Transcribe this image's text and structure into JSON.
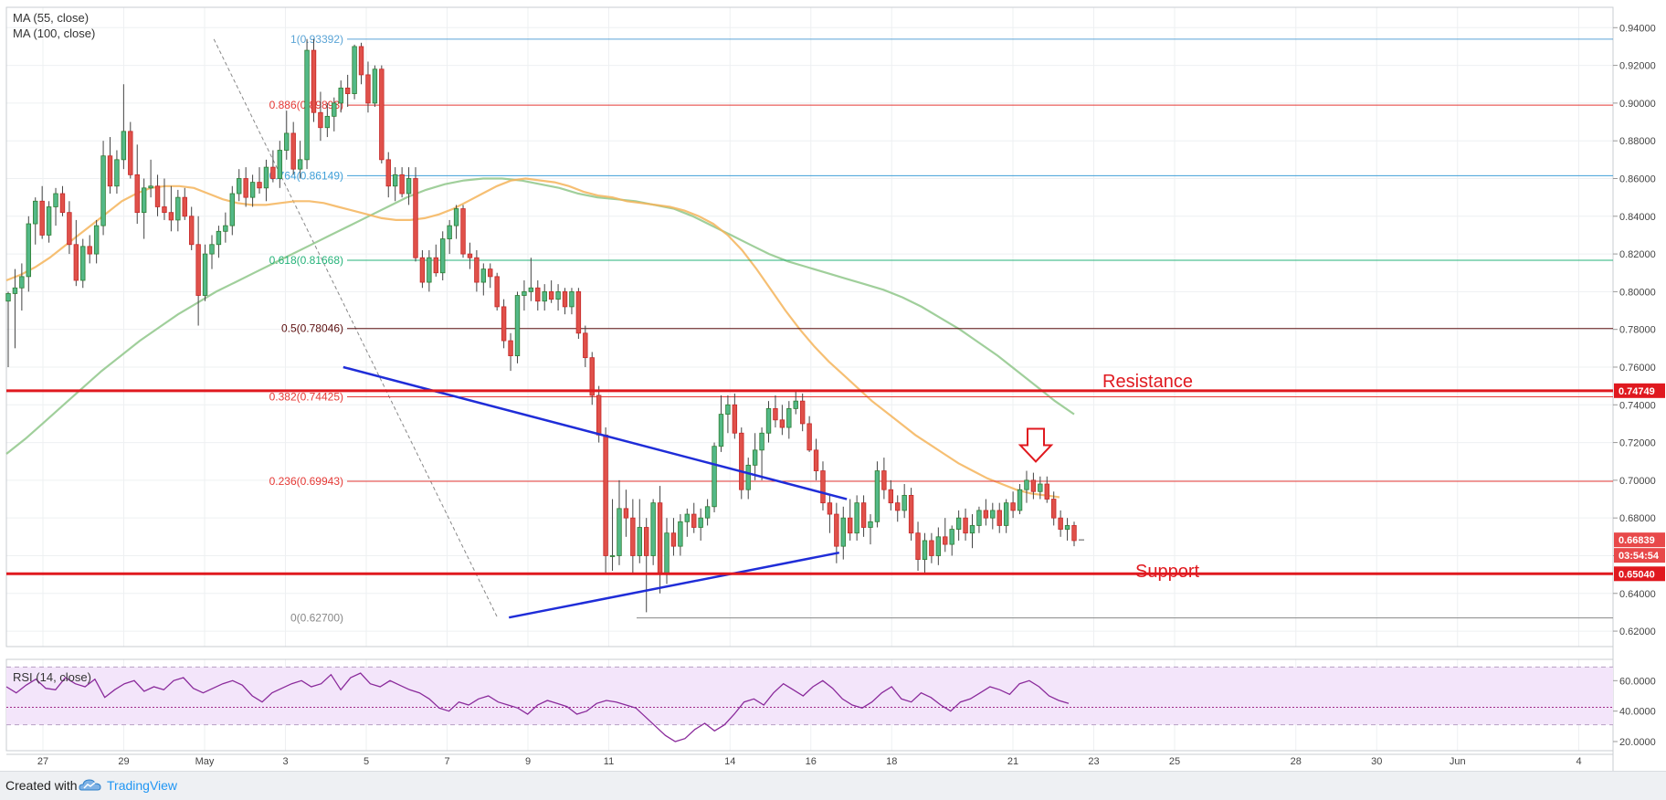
{
  "chart_data": {
    "type": "candlestick",
    "indicators": {
      "ma55": "MA (55, close)",
      "ma100": "MA (100, close)",
      "rsi": "RSI (14, close)"
    },
    "price_ticks": [
      "0.94000",
      "0.92000",
      "0.90000",
      "0.88000",
      "0.86000",
      "0.84000",
      "0.82000",
      "0.80000",
      "0.78000",
      "0.76000",
      "0.74000",
      "0.72000",
      "0.70000",
      "0.68000",
      "0.66000",
      "0.64000",
      "0.62000"
    ],
    "ylim": [
      0.6118,
      0.9508
    ],
    "rsi_ticks": [
      "60.0000",
      "40.0000",
      "20.0000"
    ],
    "rsi_ylim": [
      14,
      74
    ],
    "x_ticks": [
      "27",
      "29",
      "May",
      "3",
      "5",
      "7",
      "9",
      "11",
      "14",
      "16",
      "18",
      "21",
      "23",
      "25",
      "28",
      "30",
      "Jun",
      "4"
    ],
    "fib_levels": [
      {
        "ratio": "1",
        "value": 0.93392,
        "label": "1(0.93392)",
        "color": "#5aa4d6"
      },
      {
        "ratio": "0.886",
        "value": 0.89893,
        "label": "0.886(0.89893)",
        "color": "#e53935"
      },
      {
        "ratio": "0.764",
        "value": 0.86149,
        "label": "0.764(0.86149)",
        "color": "#3f9fd8"
      },
      {
        "ratio": "0.618",
        "value": 0.81668,
        "label": "0.618(0.81668)",
        "color": "#26b37a"
      },
      {
        "ratio": "0.5",
        "value": 0.78046,
        "label": "0.5(0.78046)",
        "color": "#5d1010"
      },
      {
        "ratio": "0.382",
        "value": 0.74425,
        "label": "0.382(0.74425)",
        "color": "#e53935"
      },
      {
        "ratio": "0.236",
        "value": 0.69943,
        "label": "0.236(0.69943)",
        "color": "#e53935"
      },
      {
        "ratio": "0",
        "value": 0.627,
        "label": "0(0.62700)",
        "color": "#888888"
      }
    ],
    "horizontal_lines": [
      {
        "name": "Resistance",
        "value": 0.74749,
        "badge": "0.74749"
      },
      {
        "name": "Support",
        "value": 0.6504,
        "badge": "0.65040"
      }
    ],
    "current_price": {
      "value": 0.66839,
      "badge": "0.66839",
      "countdown": "03:54:54"
    },
    "annotations": {
      "resistance_text": "Resistance",
      "support_text": "Support"
    },
    "trendlines": [
      {
        "name": "upper",
        "from": [
          7.43,
          0.76
        ],
        "to": [
          19.89,
          0.69
        ]
      },
      {
        "name": "lower",
        "from": [
          11.53,
          0.6272
        ],
        "to": [
          19.7,
          0.6616
        ]
      },
      {
        "name": "fib-diagonal",
        "from": [
          4.23,
          0.93392
        ],
        "to": [
          11.25,
          0.627
        ]
      }
    ],
    "candles": [
      [
        0.795,
        0.8,
        0.76,
        0.799
      ],
      [
        0.799,
        0.812,
        0.77,
        0.802
      ],
      [
        0.802,
        0.815,
        0.79,
        0.808
      ],
      [
        0.808,
        0.84,
        0.8,
        0.836
      ],
      [
        0.836,
        0.85,
        0.825,
        0.848
      ],
      [
        0.848,
        0.856,
        0.828,
        0.83
      ],
      [
        0.83,
        0.848,
        0.826,
        0.845
      ],
      [
        0.845,
        0.855,
        0.835,
        0.852
      ],
      [
        0.852,
        0.856,
        0.84,
        0.842
      ],
      [
        0.842,
        0.848,
        0.82,
        0.825
      ],
      [
        0.825,
        0.838,
        0.803,
        0.806
      ],
      [
        0.806,
        0.828,
        0.802,
        0.824
      ],
      [
        0.824,
        0.83,
        0.815,
        0.82
      ],
      [
        0.82,
        0.838,
        0.815,
        0.835
      ],
      [
        0.835,
        0.88,
        0.83,
        0.872
      ],
      [
        0.872,
        0.882,
        0.852,
        0.856
      ],
      [
        0.856,
        0.875,
        0.852,
        0.87
      ],
      [
        0.87,
        0.91,
        0.865,
        0.885
      ],
      [
        0.885,
        0.89,
        0.86,
        0.862
      ],
      [
        0.862,
        0.878,
        0.836,
        0.842
      ],
      [
        0.842,
        0.86,
        0.828,
        0.855
      ],
      [
        0.855,
        0.87,
        0.85,
        0.856
      ],
      [
        0.856,
        0.862,
        0.84,
        0.845
      ],
      [
        0.845,
        0.86,
        0.838,
        0.842
      ],
      [
        0.842,
        0.856,
        0.832,
        0.838
      ],
      [
        0.838,
        0.854,
        0.832,
        0.85
      ],
      [
        0.85,
        0.855,
        0.838,
        0.84
      ],
      [
        0.84,
        0.845,
        0.822,
        0.825
      ],
      [
        0.825,
        0.84,
        0.782,
        0.798
      ],
      [
        0.798,
        0.825,
        0.795,
        0.82
      ],
      [
        0.82,
        0.83,
        0.812,
        0.825
      ],
      [
        0.825,
        0.835,
        0.818,
        0.832
      ],
      [
        0.832,
        0.842,
        0.826,
        0.835
      ],
      [
        0.835,
        0.856,
        0.83,
        0.852
      ],
      [
        0.852,
        0.865,
        0.848,
        0.86
      ],
      [
        0.86,
        0.866,
        0.845,
        0.85
      ],
      [
        0.85,
        0.862,
        0.845,
        0.858
      ],
      [
        0.858,
        0.866,
        0.852,
        0.855
      ],
      [
        0.855,
        0.87,
        0.848,
        0.866
      ],
      [
        0.866,
        0.875,
        0.858,
        0.86
      ],
      [
        0.86,
        0.88,
        0.855,
        0.875
      ],
      [
        0.875,
        0.896,
        0.87,
        0.884
      ],
      [
        0.884,
        0.89,
        0.862,
        0.865
      ],
      [
        0.865,
        0.88,
        0.86,
        0.87
      ],
      [
        0.87,
        0.934,
        0.865,
        0.928
      ],
      [
        0.928,
        0.934,
        0.89,
        0.895
      ],
      [
        0.895,
        0.906,
        0.88,
        0.887
      ],
      [
        0.887,
        0.9,
        0.882,
        0.893
      ],
      [
        0.893,
        0.903,
        0.885,
        0.9
      ],
      [
        0.9,
        0.912,
        0.895,
        0.908
      ],
      [
        0.908,
        0.915,
        0.898,
        0.905
      ],
      [
        0.905,
        0.931,
        0.902,
        0.93
      ],
      [
        0.93,
        0.932,
        0.91,
        0.915
      ],
      [
        0.915,
        0.922,
        0.895,
        0.9
      ],
      [
        0.9,
        0.92,
        0.898,
        0.918
      ],
      [
        0.918,
        0.92,
        0.868,
        0.87
      ],
      [
        0.87,
        0.874,
        0.85,
        0.856
      ],
      [
        0.856,
        0.866,
        0.848,
        0.862
      ],
      [
        0.862,
        0.866,
        0.85,
        0.852
      ],
      [
        0.852,
        0.866,
        0.846,
        0.86
      ],
      [
        0.86,
        0.866,
        0.816,
        0.818
      ],
      [
        0.818,
        0.822,
        0.802,
        0.805
      ],
      [
        0.805,
        0.822,
        0.8,
        0.818
      ],
      [
        0.818,
        0.825,
        0.808,
        0.81
      ],
      [
        0.81,
        0.832,
        0.806,
        0.828
      ],
      [
        0.828,
        0.838,
        0.82,
        0.835
      ],
      [
        0.835,
        0.846,
        0.828,
        0.844
      ],
      [
        0.844,
        0.846,
        0.818,
        0.82
      ],
      [
        0.82,
        0.826,
        0.812,
        0.818
      ],
      [
        0.818,
        0.822,
        0.8,
        0.805
      ],
      [
        0.805,
        0.815,
        0.798,
        0.812
      ],
      [
        0.812,
        0.815,
        0.802,
        0.808
      ],
      [
        0.808,
        0.81,
        0.79,
        0.792
      ],
      [
        0.792,
        0.796,
        0.77,
        0.774
      ],
      [
        0.774,
        0.778,
        0.758,
        0.766
      ],
      [
        0.766,
        0.8,
        0.762,
        0.798
      ],
      [
        0.798,
        0.806,
        0.79,
        0.8
      ],
      [
        0.8,
        0.818,
        0.795,
        0.802
      ],
      [
        0.802,
        0.806,
        0.79,
        0.795
      ],
      [
        0.795,
        0.804,
        0.79,
        0.8
      ],
      [
        0.8,
        0.806,
        0.794,
        0.796
      ],
      [
        0.796,
        0.804,
        0.79,
        0.8
      ],
      [
        0.8,
        0.802,
        0.788,
        0.792
      ],
      [
        0.792,
        0.802,
        0.788,
        0.8
      ],
      [
        0.8,
        0.802,
        0.775,
        0.778
      ],
      [
        0.778,
        0.782,
        0.76,
        0.765
      ],
      [
        0.765,
        0.768,
        0.74,
        0.745
      ],
      [
        0.745,
        0.75,
        0.72,
        0.724
      ],
      [
        0.724,
        0.728,
        0.65,
        0.66
      ],
      [
        0.66,
        0.69,
        0.652,
        0.66
      ],
      [
        0.66,
        0.7,
        0.655,
        0.685
      ],
      [
        0.685,
        0.695,
        0.67,
        0.68
      ],
      [
        0.68,
        0.69,
        0.65,
        0.66
      ],
      [
        0.66,
        0.69,
        0.656,
        0.675
      ],
      [
        0.675,
        0.68,
        0.63,
        0.66
      ],
      [
        0.66,
        0.69,
        0.655,
        0.688
      ],
      [
        0.688,
        0.697,
        0.64,
        0.65
      ],
      [
        0.65,
        0.68,
        0.645,
        0.672
      ],
      [
        0.672,
        0.68,
        0.66,
        0.665
      ],
      [
        0.665,
        0.682,
        0.66,
        0.678
      ],
      [
        0.678,
        0.685,
        0.67,
        0.682
      ],
      [
        0.682,
        0.688,
        0.672,
        0.675
      ],
      [
        0.675,
        0.685,
        0.668,
        0.68
      ],
      [
        0.68,
        0.69,
        0.676,
        0.686
      ],
      [
        0.686,
        0.72,
        0.683,
        0.718
      ],
      [
        0.718,
        0.745,
        0.715,
        0.735
      ],
      [
        0.735,
        0.745,
        0.725,
        0.74
      ],
      [
        0.74,
        0.746,
        0.722,
        0.725
      ],
      [
        0.725,
        0.728,
        0.69,
        0.695
      ],
      [
        0.695,
        0.712,
        0.69,
        0.708
      ],
      [
        0.708,
        0.725,
        0.7,
        0.716
      ],
      [
        0.716,
        0.728,
        0.7,
        0.725
      ],
      [
        0.725,
        0.742,
        0.72,
        0.738
      ],
      [
        0.738,
        0.745,
        0.728,
        0.732
      ],
      [
        0.732,
        0.74,
        0.724,
        0.728
      ],
      [
        0.728,
        0.742,
        0.722,
        0.738
      ],
      [
        0.738,
        0.748,
        0.735,
        0.742
      ],
      [
        0.742,
        0.746,
        0.726,
        0.73
      ],
      [
        0.73,
        0.734,
        0.715,
        0.716
      ],
      [
        0.716,
        0.722,
        0.7,
        0.705
      ],
      [
        0.705,
        0.71,
        0.684,
        0.688
      ],
      [
        0.688,
        0.692,
        0.672,
        0.682
      ],
      [
        0.682,
        0.688,
        0.656,
        0.665
      ],
      [
        0.665,
        0.686,
        0.658,
        0.68
      ],
      [
        0.68,
        0.69,
        0.668,
        0.672
      ],
      [
        0.672,
        0.692,
        0.668,
        0.688
      ],
      [
        0.688,
        0.692,
        0.67,
        0.675
      ],
      [
        0.675,
        0.682,
        0.666,
        0.678
      ],
      [
        0.678,
        0.71,
        0.675,
        0.705
      ],
      [
        0.705,
        0.712,
        0.69,
        0.695
      ],
      [
        0.695,
        0.7,
        0.684,
        0.688
      ],
      [
        0.688,
        0.692,
        0.678,
        0.684
      ],
      [
        0.684,
        0.698,
        0.68,
        0.692
      ],
      [
        0.692,
        0.696,
        0.668,
        0.672
      ],
      [
        0.672,
        0.678,
        0.652,
        0.658
      ],
      [
        0.658,
        0.672,
        0.65,
        0.668
      ],
      [
        0.668,
        0.672,
        0.656,
        0.66
      ],
      [
        0.66,
        0.675,
        0.655,
        0.67
      ],
      [
        0.67,
        0.68,
        0.662,
        0.666
      ],
      [
        0.666,
        0.676,
        0.66,
        0.674
      ],
      [
        0.674,
        0.684,
        0.668,
        0.68
      ],
      [
        0.68,
        0.685,
        0.668,
        0.672
      ],
      [
        0.672,
        0.682,
        0.664,
        0.676
      ],
      [
        0.676,
        0.686,
        0.672,
        0.684
      ],
      [
        0.684,
        0.69,
        0.676,
        0.68
      ],
      [
        0.68,
        0.688,
        0.674,
        0.684
      ],
      [
        0.684,
        0.688,
        0.672,
        0.676
      ],
      [
        0.676,
        0.69,
        0.672,
        0.688
      ],
      [
        0.688,
        0.694,
        0.68,
        0.684
      ],
      [
        0.684,
        0.698,
        0.682,
        0.695
      ],
      [
        0.695,
        0.705,
        0.688,
        0.7
      ],
      [
        0.7,
        0.704,
        0.69,
        0.694
      ],
      [
        0.694,
        0.702,
        0.69,
        0.698
      ],
      [
        0.698,
        0.702,
        0.688,
        0.69
      ],
      [
        0.69,
        0.694,
        0.676,
        0.68
      ],
      [
        0.68,
        0.684,
        0.67,
        0.674
      ],
      [
        0.674,
        0.68,
        0.668,
        0.676
      ],
      [
        0.676,
        0.678,
        0.665,
        0.668
      ]
    ],
    "ma55": [
      0.806,
      0.809,
      0.813,
      0.818,
      0.824,
      0.83,
      0.836,
      0.842,
      0.848,
      0.852,
      0.855,
      0.856,
      0.856,
      0.855,
      0.852,
      0.849,
      0.847,
      0.846,
      0.846,
      0.847,
      0.848,
      0.848,
      0.847,
      0.845,
      0.843,
      0.841,
      0.839,
      0.838,
      0.838,
      0.839,
      0.841,
      0.844,
      0.848,
      0.852,
      0.856,
      0.859,
      0.86,
      0.859,
      0.858,
      0.856,
      0.853,
      0.851,
      0.85,
      0.848,
      0.847,
      0.846,
      0.845,
      0.843,
      0.84,
      0.836,
      0.83,
      0.822,
      0.812,
      0.801,
      0.79,
      0.78,
      0.771,
      0.763,
      0.756,
      0.749,
      0.742,
      0.736,
      0.73,
      0.724,
      0.719,
      0.714,
      0.709,
      0.705,
      0.701,
      0.698,
      0.695,
      0.693,
      0.692,
      0.691
    ],
    "ma100": [
      0.714,
      0.722,
      0.731,
      0.74,
      0.749,
      0.758,
      0.766,
      0.774,
      0.781,
      0.788,
      0.794,
      0.8,
      0.805,
      0.81,
      0.815,
      0.82,
      0.825,
      0.83,
      0.835,
      0.84,
      0.845,
      0.85,
      0.854,
      0.857,
      0.859,
      0.86,
      0.86,
      0.859,
      0.857,
      0.855,
      0.852,
      0.85,
      0.849,
      0.848,
      0.846,
      0.844,
      0.84,
      0.835,
      0.83,
      0.825,
      0.82,
      0.816,
      0.813,
      0.81,
      0.807,
      0.804,
      0.801,
      0.797,
      0.792,
      0.786,
      0.78,
      0.773,
      0.766,
      0.758,
      0.75,
      0.742,
      0.735
    ],
    "rsi": [
      56,
      52,
      57,
      61,
      55,
      54,
      62,
      58,
      56,
      61,
      49,
      54,
      58,
      60,
      53,
      56,
      54,
      60,
      62,
      55,
      52,
      55,
      58,
      60,
      57,
      50,
      46,
      52,
      55,
      58,
      60,
      56,
      58,
      64,
      54,
      62,
      65,
      58,
      56,
      60,
      57,
      54,
      52,
      48,
      42,
      40,
      46,
      44,
      48,
      50,
      46,
      44,
      42,
      38,
      44,
      47,
      45,
      43,
      38,
      40,
      45,
      47,
      46,
      44,
      42,
      36,
      30,
      24,
      20,
      22,
      28,
      32,
      27,
      31,
      38,
      46,
      48,
      44,
      52,
      58,
      54,
      50,
      56,
      60,
      55,
      48,
      44,
      42,
      46,
      52,
      56,
      48,
      46,
      52,
      49,
      44,
      40,
      46,
      48,
      52,
      56,
      54,
      51,
      58,
      60,
      56,
      50,
      47,
      45
    ],
    "rsi_mid_line": 42.5,
    "rsi_band": [
      31,
      69
    ]
  }
}
